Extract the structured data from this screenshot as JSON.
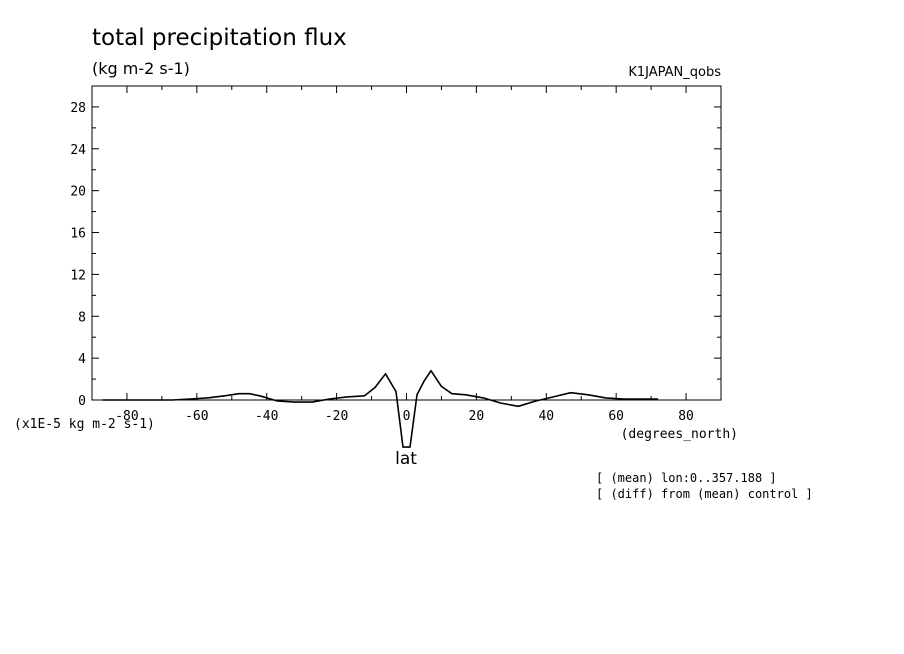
{
  "chart_data": {
    "type": "line",
    "title": "total precipitation flux",
    "subtitle": "(kg m-2 s-1)",
    "run_label": "K1JAPAN_qobs",
    "xlabel": "lat",
    "x_units": "(degrees_north)",
    "y_units": "(x1E-5 kg m-2 s-1)",
    "notes": [
      "[ (mean) lon:0..357.188 ]",
      "[ (diff) from (mean) control ]"
    ],
    "xlim": [
      -90,
      90
    ],
    "ylim": [
      0,
      30
    ],
    "x_ticks": [
      -80,
      -60,
      -40,
      -20,
      0,
      20,
      40,
      60,
      80
    ],
    "y_ticks": [
      0,
      4,
      8,
      12,
      16,
      20,
      24,
      28
    ],
    "grid": false,
    "series": [
      {
        "x": [
          -87,
          -82,
          -77,
          -72,
          -67,
          -62,
          -57,
          -52,
          -48,
          -45,
          -42,
          -37,
          -32,
          -27,
          -22,
          -17,
          -12,
          -9,
          -6,
          -3,
          -1,
          1,
          3,
          5,
          7,
          10,
          13,
          17,
          22,
          27,
          32,
          37,
          42,
          47,
          52,
          57,
          62,
          67,
          72
        ],
        "y": [
          0,
          0,
          0,
          0,
          0,
          0.1,
          0.2,
          0.4,
          0.6,
          0.6,
          0.4,
          -0.1,
          -0.2,
          -0.2,
          0.1,
          0.3,
          0.4,
          1.2,
          2.5,
          0.8,
          -4.5,
          -4.5,
          0.5,
          1.8,
          2.8,
          1.3,
          0.6,
          0.5,
          0.2,
          -0.3,
          -0.6,
          -0.1,
          0.3,
          0.7,
          0.5,
          0.2,
          0.1,
          0.1,
          0.1
        ]
      }
    ]
  }
}
